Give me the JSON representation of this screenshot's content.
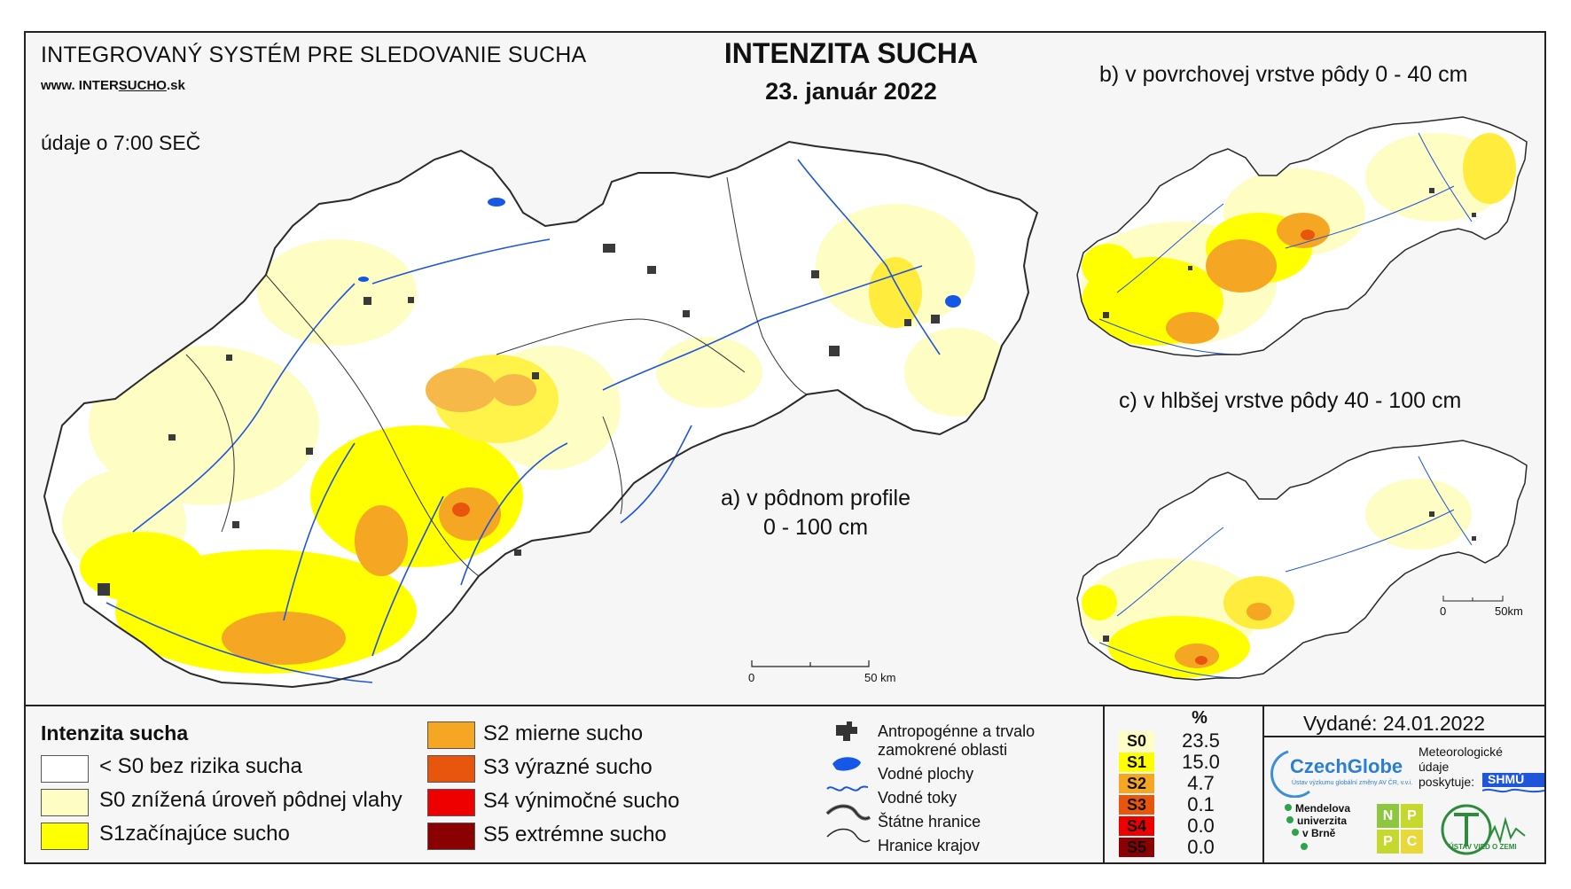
{
  "header": {
    "system_title": "INTEGROVANÝ SYSTÉM PRE SLEDOVANIE SUCHA",
    "website_prefix": "www. INTER",
    "website_highlight": "SUCHO",
    "website_suffix": ".sk",
    "time_note": "údaje o 7:00 SEČ",
    "main_title": "INTENZITA SUCHA",
    "date": "23. január 2022"
  },
  "maps": {
    "a_label_line1": "a) v pôdnom profile",
    "a_label_line2": "0 - 100 cm",
    "b_label": "b) v povrchovej vrstve pôdy 0 - 40 cm",
    "c_label": "c) v hlbšej vrstve pôdy 40 - 100 cm",
    "scale_main_start": "0",
    "scale_main_end": "50 km",
    "scale_small_start": "0",
    "scale_small_end": "50km"
  },
  "legend": {
    "title": "Intenzita sucha",
    "classes": [
      {
        "label": "< S0 bez rizika sucha",
        "color": "#ffffff"
      },
      {
        "label": "S0 znížená úroveň pôdnej vlahy",
        "color": "#fefec4"
      },
      {
        "label": "S1začínajúce sucho",
        "color": "#ffff00"
      },
      {
        "label": "S2 mierne sucho",
        "color": "#f5a623"
      },
      {
        "label": "S3 výrazné sucho",
        "color": "#e8550c"
      },
      {
        "label": "S4 výnimočné sucho",
        "color": "#ee0000"
      },
      {
        "label": "S5 extrémne sucho",
        "color": "#8b0000"
      }
    ],
    "symbols": [
      {
        "label_line1": "Antropogénne a trvalo",
        "label_line2": "zamokrené oblasti",
        "icon": "urban-area-icon"
      },
      {
        "label_line1": "Vodné plochy",
        "icon": "water-body-icon"
      },
      {
        "label_line1": "Vodné toky",
        "icon": "river-icon"
      },
      {
        "label_line1": "Štátne hranice",
        "icon": "state-border-icon"
      },
      {
        "label_line1": "Hranice krajov",
        "icon": "region-border-icon"
      }
    ]
  },
  "percent_table": {
    "header": "%",
    "rows": [
      {
        "code": "S0",
        "value": "23.5",
        "color": "#fefec4"
      },
      {
        "code": "S1",
        "value": "15.0",
        "color": "#ffff00"
      },
      {
        "code": "S2",
        "value": "4.7",
        "color": "#f5a623"
      },
      {
        "code": "S3",
        "value": "0.1",
        "color": "#e8550c"
      },
      {
        "code": "S4",
        "value": "0.0",
        "color": "#ee0000"
      },
      {
        "code": "S5",
        "value": "0.0",
        "color": "#8b0000"
      }
    ]
  },
  "footer": {
    "issued": "Vydané: 24.01.2022",
    "czechglobe": "CzechGlobe",
    "czechglobe_sub": "Ústav výzkumu globální změny AV ČR, v.v.i.",
    "shmu_note_1": "Meteorologické",
    "shmu_note_2": "údaje",
    "shmu_note_3": "poskytuje:",
    "shmu": "SHMÚ",
    "mendel_1": "Mendelova",
    "mendel_2": "univerzita",
    "mendel_3": "v Brně",
    "nppc": [
      "N",
      "P",
      "P",
      "C"
    ],
    "uvz": "ÚSTAV VIED O ZEMI"
  }
}
